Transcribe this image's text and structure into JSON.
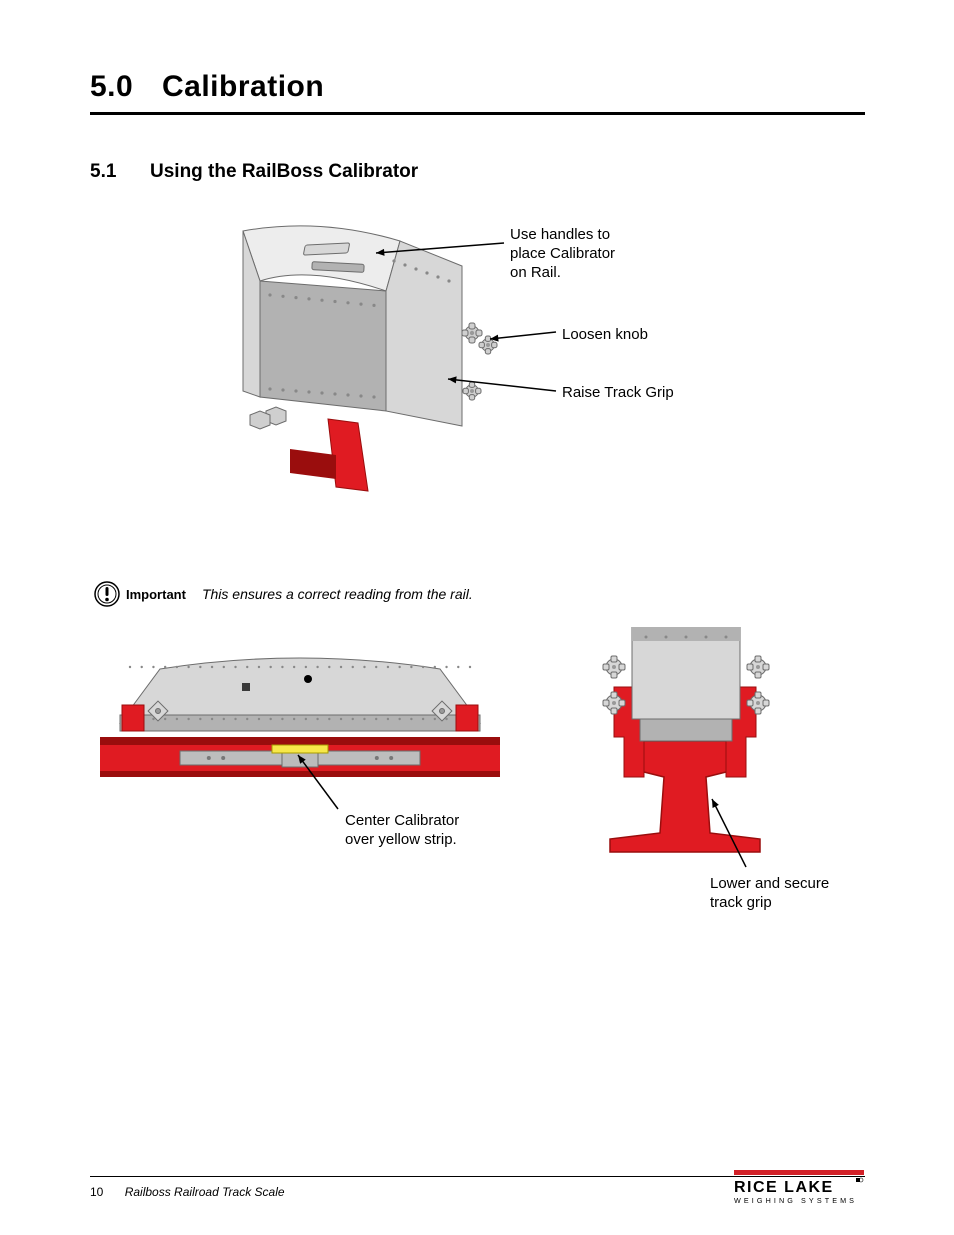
{
  "heading": {
    "number": "5.0",
    "title": "Calibration"
  },
  "subheading": {
    "number": "5.1",
    "title": "Using the RailBoss Calibrator"
  },
  "fig1": {
    "callouts": {
      "handles": "Use handles to\nplace Calibrator\non Rail.",
      "knob": "Loosen knob",
      "grip": "Raise Track Grip"
    },
    "colors": {
      "body": "#d7d7d7",
      "body_dark": "#b2b2b2",
      "body_light": "#ededed",
      "red": "#e01b22",
      "red_dark": "#9a0d0d",
      "bolt": "#cfcfcf",
      "outline": "#6c6c6c"
    }
  },
  "important": {
    "label": "Important",
    "text": "This ensures a correct reading from the rail."
  },
  "fig2": {
    "left_callout": "Center Calibrator\nover yellow strip.",
    "right_callout": "Lower and secure\ntrack grip",
    "colors": {
      "rail": "#e01b22",
      "rail_dark": "#9a0d0d",
      "body": "#d7d7d7",
      "body_dark": "#b2b2b2",
      "yellow": "#f7e84a",
      "bar": "#bdbdbd",
      "outline": "#6c6c6c"
    }
  },
  "footer": {
    "page": "10",
    "doc": "Railboss Railroad Track Scale",
    "logo_top": "RICE LAKE",
    "logo_bottom": "WEIGHING SYSTEMS",
    "logo_bar": "#d22128"
  }
}
